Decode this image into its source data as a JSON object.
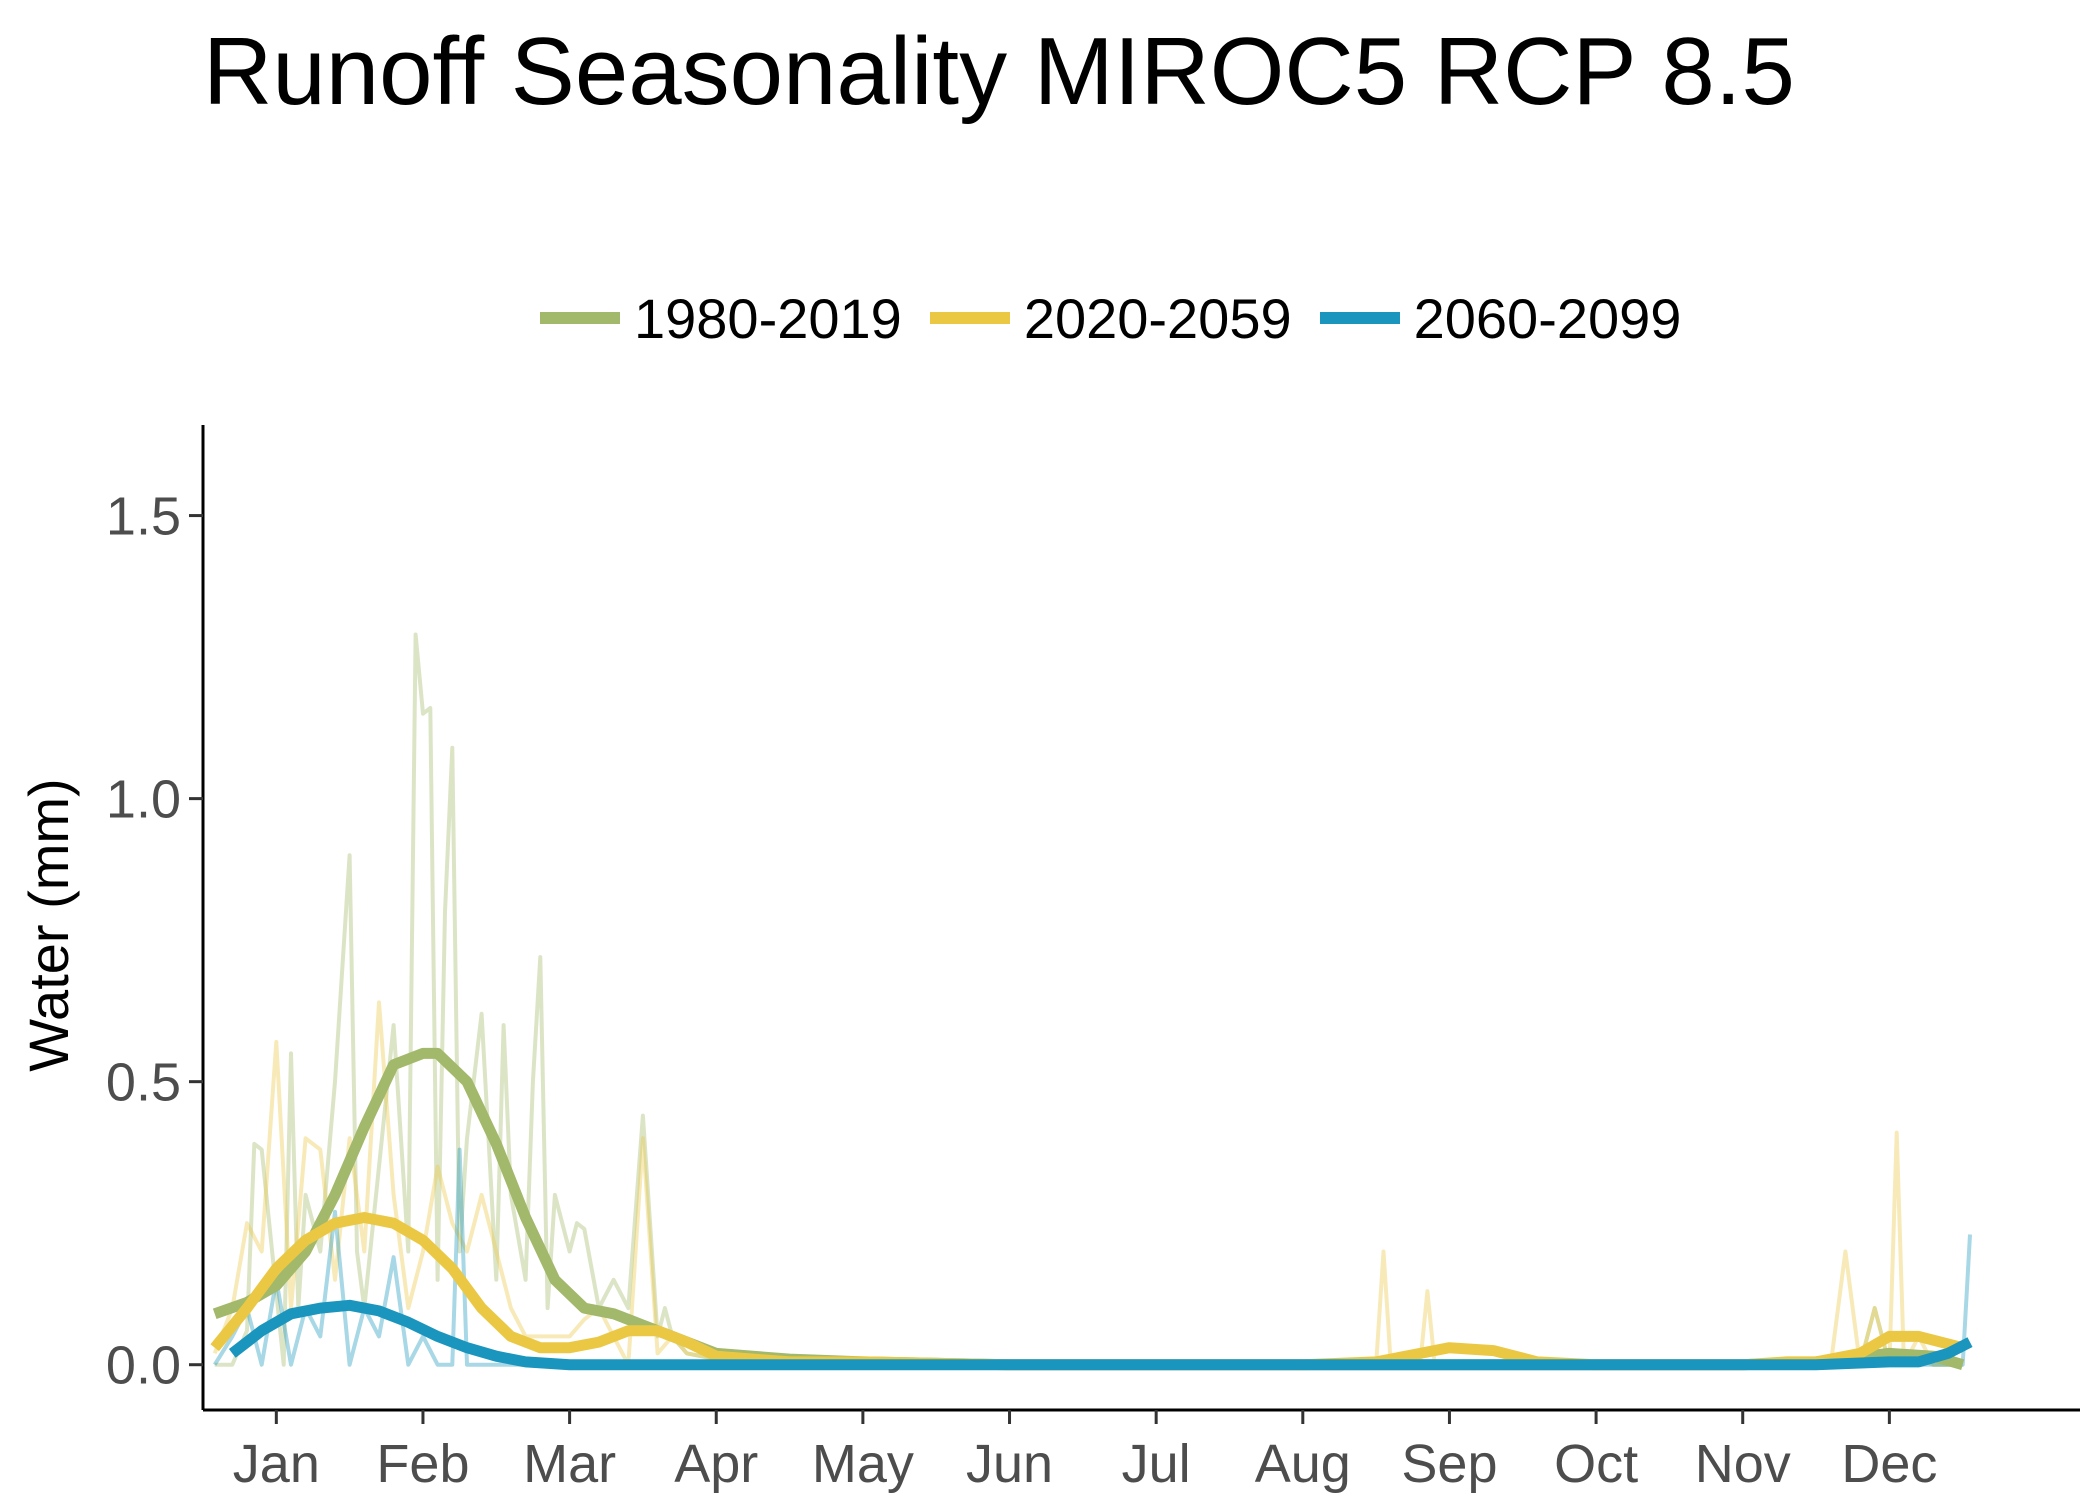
{
  "chart_data": {
    "type": "line",
    "title": "Runoff Seasonality MIROC5 RCP 8.5",
    "xlabel": "",
    "ylabel": "Water (mm)",
    "ylim": [
      -0.08,
      1.66
    ],
    "xlim": [
      -0.5,
      12.3
    ],
    "yticks": [
      0.0,
      0.5,
      1.0,
      1.5
    ],
    "ytick_labels": [
      "0.0",
      "0.5",
      "1.0",
      "1.5"
    ],
    "categories": [
      "Jan",
      "Feb",
      "Mar",
      "Apr",
      "May",
      "Jun",
      "Jul",
      "Aug",
      "Sep",
      "Oct",
      "Nov",
      "Dec"
    ],
    "category_positions": [
      0,
      1,
      2,
      3,
      4,
      5,
      6,
      7,
      8,
      9,
      10,
      11
    ],
    "grid": false,
    "legend_position": "top",
    "series": [
      {
        "name": "1980-2019",
        "color": "#a2b86a",
        "smooth_x": [
          -0.42,
          -0.2,
          0,
          0.2,
          0.4,
          0.6,
          0.8,
          1.0,
          1.1,
          1.3,
          1.5,
          1.7,
          1.9,
          2.1,
          2.3,
          2.5,
          2.7,
          3.0,
          3.5,
          4,
          5,
          6,
          7,
          8,
          9,
          10,
          10.5,
          11,
          11.3,
          11.5
        ],
        "smooth_y": [
          0.09,
          0.11,
          0.14,
          0.2,
          0.3,
          0.42,
          0.53,
          0.55,
          0.55,
          0.5,
          0.39,
          0.26,
          0.15,
          0.1,
          0.09,
          0.07,
          0.05,
          0.02,
          0.01,
          0.005,
          0,
          0,
          0,
          0,
          0,
          0,
          0.005,
          0.02,
          0.015,
          0.0
        ],
        "raw_x": [
          -0.42,
          -0.3,
          -0.2,
          -0.15,
          -0.1,
          0.05,
          0.1,
          0.15,
          0.2,
          0.3,
          0.4,
          0.5,
          0.55,
          0.6,
          0.7,
          0.8,
          0.9,
          0.95,
          1.0,
          1.05,
          1.1,
          1.15,
          1.2,
          1.25,
          1.3,
          1.4,
          1.5,
          1.55,
          1.6,
          1.7,
          1.75,
          1.8,
          1.85,
          1.9,
          2.0,
          2.05,
          2.1,
          2.2,
          2.3,
          2.4,
          2.5,
          2.6,
          2.65,
          2.7,
          2.8,
          3.0,
          3.5,
          4,
          5,
          6,
          7,
          8,
          9,
          10,
          10.7,
          10.8,
          10.9,
          11.0,
          11.1,
          11.3,
          11.5
        ],
        "raw_y": [
          0.0,
          0.0,
          0.06,
          0.39,
          0.38,
          0.0,
          0.55,
          0.1,
          0.3,
          0.2,
          0.5,
          0.9,
          0.2,
          0.1,
          0.35,
          0.6,
          0.2,
          1.29,
          1.15,
          1.16,
          0.15,
          0.8,
          1.09,
          0.2,
          0.4,
          0.62,
          0.15,
          0.6,
          0.3,
          0.15,
          0.5,
          0.72,
          0.1,
          0.3,
          0.2,
          0.25,
          0.24,
          0.1,
          0.15,
          0.1,
          0.44,
          0.05,
          0.1,
          0.05,
          0.02,
          0.01,
          0.0,
          0.0,
          0.0,
          0.0,
          0.0,
          0.0,
          0.0,
          0.0,
          0.0,
          0.0,
          0.1,
          0.0,
          0.02,
          0.0,
          0.0
        ]
      },
      {
        "name": "2020-2059",
        "color": "#ebc844",
        "smooth_x": [
          -0.42,
          -0.2,
          0,
          0.2,
          0.4,
          0.6,
          0.8,
          1.0,
          1.2,
          1.4,
          1.6,
          1.8,
          2.0,
          2.2,
          2.4,
          2.6,
          2.8,
          3.0,
          3.5,
          4,
          5,
          6,
          7,
          7.5,
          7.8,
          8,
          8.3,
          8.6,
          9,
          9.5,
          10,
          10.3,
          10.5,
          10.8,
          11,
          11.2,
          11.5
        ],
        "smooth_y": [
          0.03,
          0.1,
          0.17,
          0.22,
          0.25,
          0.26,
          0.25,
          0.22,
          0.17,
          0.1,
          0.05,
          0.03,
          0.03,
          0.04,
          0.06,
          0.06,
          0.04,
          0.015,
          0.005,
          0.005,
          0,
          0,
          0,
          0.005,
          0.02,
          0.03,
          0.025,
          0.005,
          0,
          0,
          0,
          0.005,
          0.005,
          0.02,
          0.05,
          0.05,
          0.03
        ],
        "raw_x": [
          -0.42,
          -0.3,
          -0.2,
          -0.1,
          0,
          0.1,
          0.2,
          0.3,
          0.4,
          0.5,
          0.6,
          0.7,
          0.8,
          0.9,
          1.0,
          1.1,
          1.2,
          1.3,
          1.4,
          1.5,
          1.6,
          1.7,
          1.8,
          1.9,
          2.0,
          2.1,
          2.2,
          2.3,
          2.4,
          2.5,
          2.6,
          2.7,
          2.8,
          3.0,
          3.5,
          4,
          5,
          6,
          7,
          7.5,
          7.55,
          7.6,
          7.8,
          7.85,
          7.9,
          8.0,
          9,
          10,
          10.6,
          10.7,
          10.8,
          10.9,
          11.0,
          11.05,
          11.1,
          11.2,
          11.3,
          11.5
        ],
        "raw_y": [
          0.02,
          0.1,
          0.25,
          0.2,
          0.57,
          0.1,
          0.4,
          0.38,
          0.15,
          0.4,
          0.2,
          0.64,
          0.3,
          0.1,
          0.2,
          0.35,
          0.25,
          0.2,
          0.3,
          0.2,
          0.1,
          0.05,
          0.05,
          0.05,
          0.05,
          0.08,
          0.1,
          0.05,
          0.0,
          0.4,
          0.02,
          0.05,
          0.02,
          0.01,
          0.0,
          0.0,
          0.0,
          0.0,
          0.0,
          0.0,
          0.2,
          0.0,
          0.0,
          0.13,
          0.0,
          0.0,
          0.0,
          0.0,
          0.0,
          0.2,
          0.0,
          0.1,
          0.0,
          0.41,
          0.0,
          0.05,
          0.0,
          0.0
        ]
      },
      {
        "name": "2060-2099",
        "color": "#1a95bd",
        "smooth_x": [
          -0.3,
          -0.1,
          0.1,
          0.3,
          0.5,
          0.7,
          0.9,
          1.1,
          1.3,
          1.5,
          1.7,
          2.0,
          2.5,
          3,
          4,
          5,
          6,
          7,
          8,
          9,
          10,
          10.5,
          11,
          11.2,
          11.4,
          11.55
        ],
        "smooth_y": [
          0.02,
          0.06,
          0.09,
          0.1,
          0.105,
          0.095,
          0.075,
          0.05,
          0.03,
          0.015,
          0.005,
          0.0,
          0.0,
          0.0,
          0.0,
          0.0,
          0.0,
          0.0,
          0.0,
          0.0,
          0.0,
          0.0,
          0.005,
          0.005,
          0.02,
          0.04
        ],
        "raw_x": [
          -0.42,
          -0.3,
          -0.2,
          -0.1,
          0,
          0.1,
          0.2,
          0.3,
          0.4,
          0.5,
          0.6,
          0.7,
          0.8,
          0.9,
          1.0,
          1.1,
          1.2,
          1.25,
          1.3,
          1.4,
          1.5,
          2.0,
          3,
          4,
          5,
          6,
          7,
          8,
          9,
          10,
          11,
          11.5,
          11.55
        ],
        "raw_y": [
          0.0,
          0.05,
          0.1,
          0.0,
          0.15,
          0.0,
          0.1,
          0.05,
          0.27,
          0.0,
          0.1,
          0.05,
          0.19,
          0.0,
          0.05,
          0.0,
          0.0,
          0.38,
          0.0,
          0.0,
          0.0,
          0.0,
          0.0,
          0.0,
          0.0,
          0.0,
          0.0,
          0.0,
          0.0,
          0.0,
          0.0,
          0.0,
          0.23
        ]
      }
    ]
  }
}
